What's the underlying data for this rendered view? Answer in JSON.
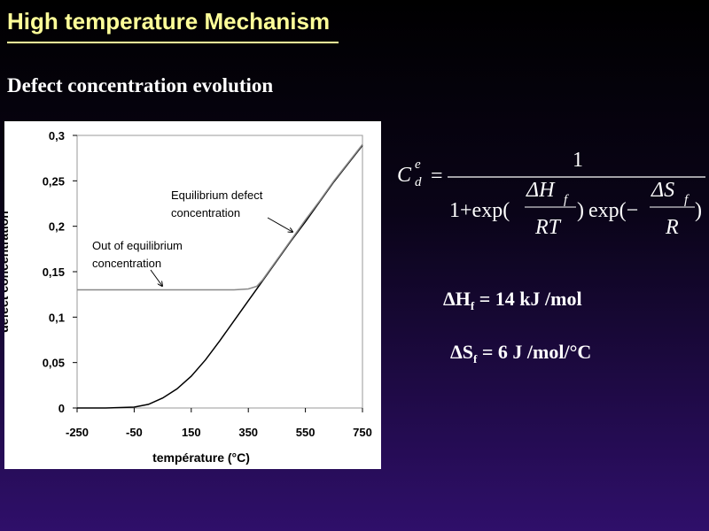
{
  "title": "High temperature Mechanism",
  "subtitle": "Defect concentration evolution",
  "chart_data": {
    "type": "line",
    "x_label": "température (°C)",
    "y_label": "defect concentration",
    "xlim": [
      -250,
      750
    ],
    "xticks": [
      -250,
      -50,
      150,
      350,
      550,
      750
    ],
    "ylim": [
      0,
      0.3
    ],
    "yticks": [
      0,
      {
        "value": 0.05,
        "label": "0,05"
      },
      {
        "value": 0.1,
        "label": "0,1"
      },
      {
        "value": 0.15,
        "label": "0,15"
      },
      {
        "value": 0.2,
        "label": "0,2"
      },
      {
        "value": 0.25,
        "label": "0,25"
      },
      {
        "value": 0.3,
        "label": "0,3"
      }
    ],
    "series": [
      {
        "color": "#000000",
        "x": [
          -250,
          -150,
          -50,
          0,
          50,
          100,
          150,
          200,
          250,
          300,
          350,
          400,
          450,
          500,
          550,
          600,
          650,
          700,
          750
        ],
        "values": [
          0,
          0,
          0.001,
          0.004,
          0.011,
          0.021,
          0.035,
          0.053,
          0.074,
          0.096,
          0.118,
          0.14,
          0.162,
          0.184,
          0.205,
          0.227,
          0.249,
          0.269,
          0.289
        ]
      },
      {
        "color": "#888888",
        "x": [
          -250,
          300,
          350,
          380,
          400,
          450,
          500,
          550,
          600,
          650,
          700,
          750
        ],
        "values": [
          0.13,
          0.13,
          0.131,
          0.134,
          0.141,
          0.163,
          0.185,
          0.207,
          0.228,
          0.25,
          0.27,
          0.29
        ]
      }
    ],
    "annotations": [
      {
        "lines": [
          "Equilibrium defect",
          "concentration"
        ]
      },
      {
        "lines": [
          "Out of equilibrium",
          "concentration"
        ]
      }
    ]
  },
  "formula": {
    "lhs": "C",
    "sup": "e",
    "sub": "d",
    "equals": "=",
    "numerator": "1",
    "den_start": "1+exp(",
    "h_num": "ΔH",
    "h_sub": "f",
    "h_den": "RT",
    "close1": ")",
    "den_mid": "exp(−",
    "s_num": "ΔS",
    "s_sub": "f",
    "s_den": "R",
    "close2": ")"
  },
  "enthalpy": {
    "symbol": "ΔH",
    "sub": "f",
    "text": " = 14 kJ /mol"
  },
  "entropy": {
    "symbol": "ΔS",
    "sub": "f",
    "text": " = 6 J /mol/°C"
  }
}
